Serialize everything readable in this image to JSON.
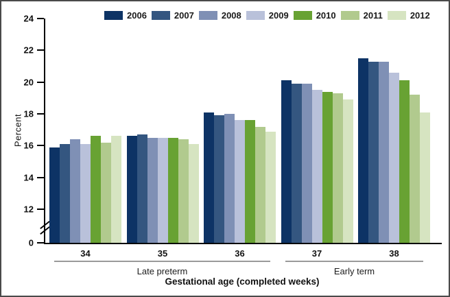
{
  "chart_data": {
    "type": "bar",
    "title": "",
    "ylabel": "Percent",
    "xlabel": "Gestational age (completed weeks)",
    "categories": [
      "34",
      "35",
      "36",
      "37",
      "38"
    ],
    "category_groups": [
      {
        "label": "Late preterm",
        "categories": [
          "34",
          "35",
          "36"
        ]
      },
      {
        "label": "Early term",
        "categories": [
          "37",
          "38"
        ]
      }
    ],
    "series": [
      {
        "name": "2006",
        "color": "#0d3365",
        "values": [
          15.9,
          16.6,
          18.1,
          20.1,
          21.5
        ]
      },
      {
        "name": "2007",
        "color": "#345680",
        "values": [
          16.1,
          16.7,
          17.9,
          19.9,
          21.3
        ]
      },
      {
        "name": "2008",
        "color": "#7f90b5",
        "values": [
          16.4,
          16.5,
          18.0,
          19.9,
          21.3
        ]
      },
      {
        "name": "2009",
        "color": "#b9c1da",
        "values": [
          16.1,
          16.5,
          17.6,
          19.5,
          20.6
        ]
      },
      {
        "name": "2010",
        "color": "#68a233",
        "values": [
          16.6,
          16.5,
          17.6,
          19.4,
          20.1
        ]
      },
      {
        "name": "2011",
        "color": "#b1ca8e",
        "values": [
          16.2,
          16.4,
          17.2,
          19.3,
          19.2
        ]
      },
      {
        "name": "2012",
        "color": "#d6e4c1",
        "values": [
          16.6,
          16.1,
          16.9,
          18.9,
          18.1
        ]
      }
    ],
    "y_ticks": [
      24,
      22,
      20,
      18,
      16,
      14,
      12,
      0
    ],
    "ylim": [
      0,
      24
    ],
    "y_axis_break_between": [
      0,
      12
    ],
    "legend_position": "top",
    "grid": false
  }
}
